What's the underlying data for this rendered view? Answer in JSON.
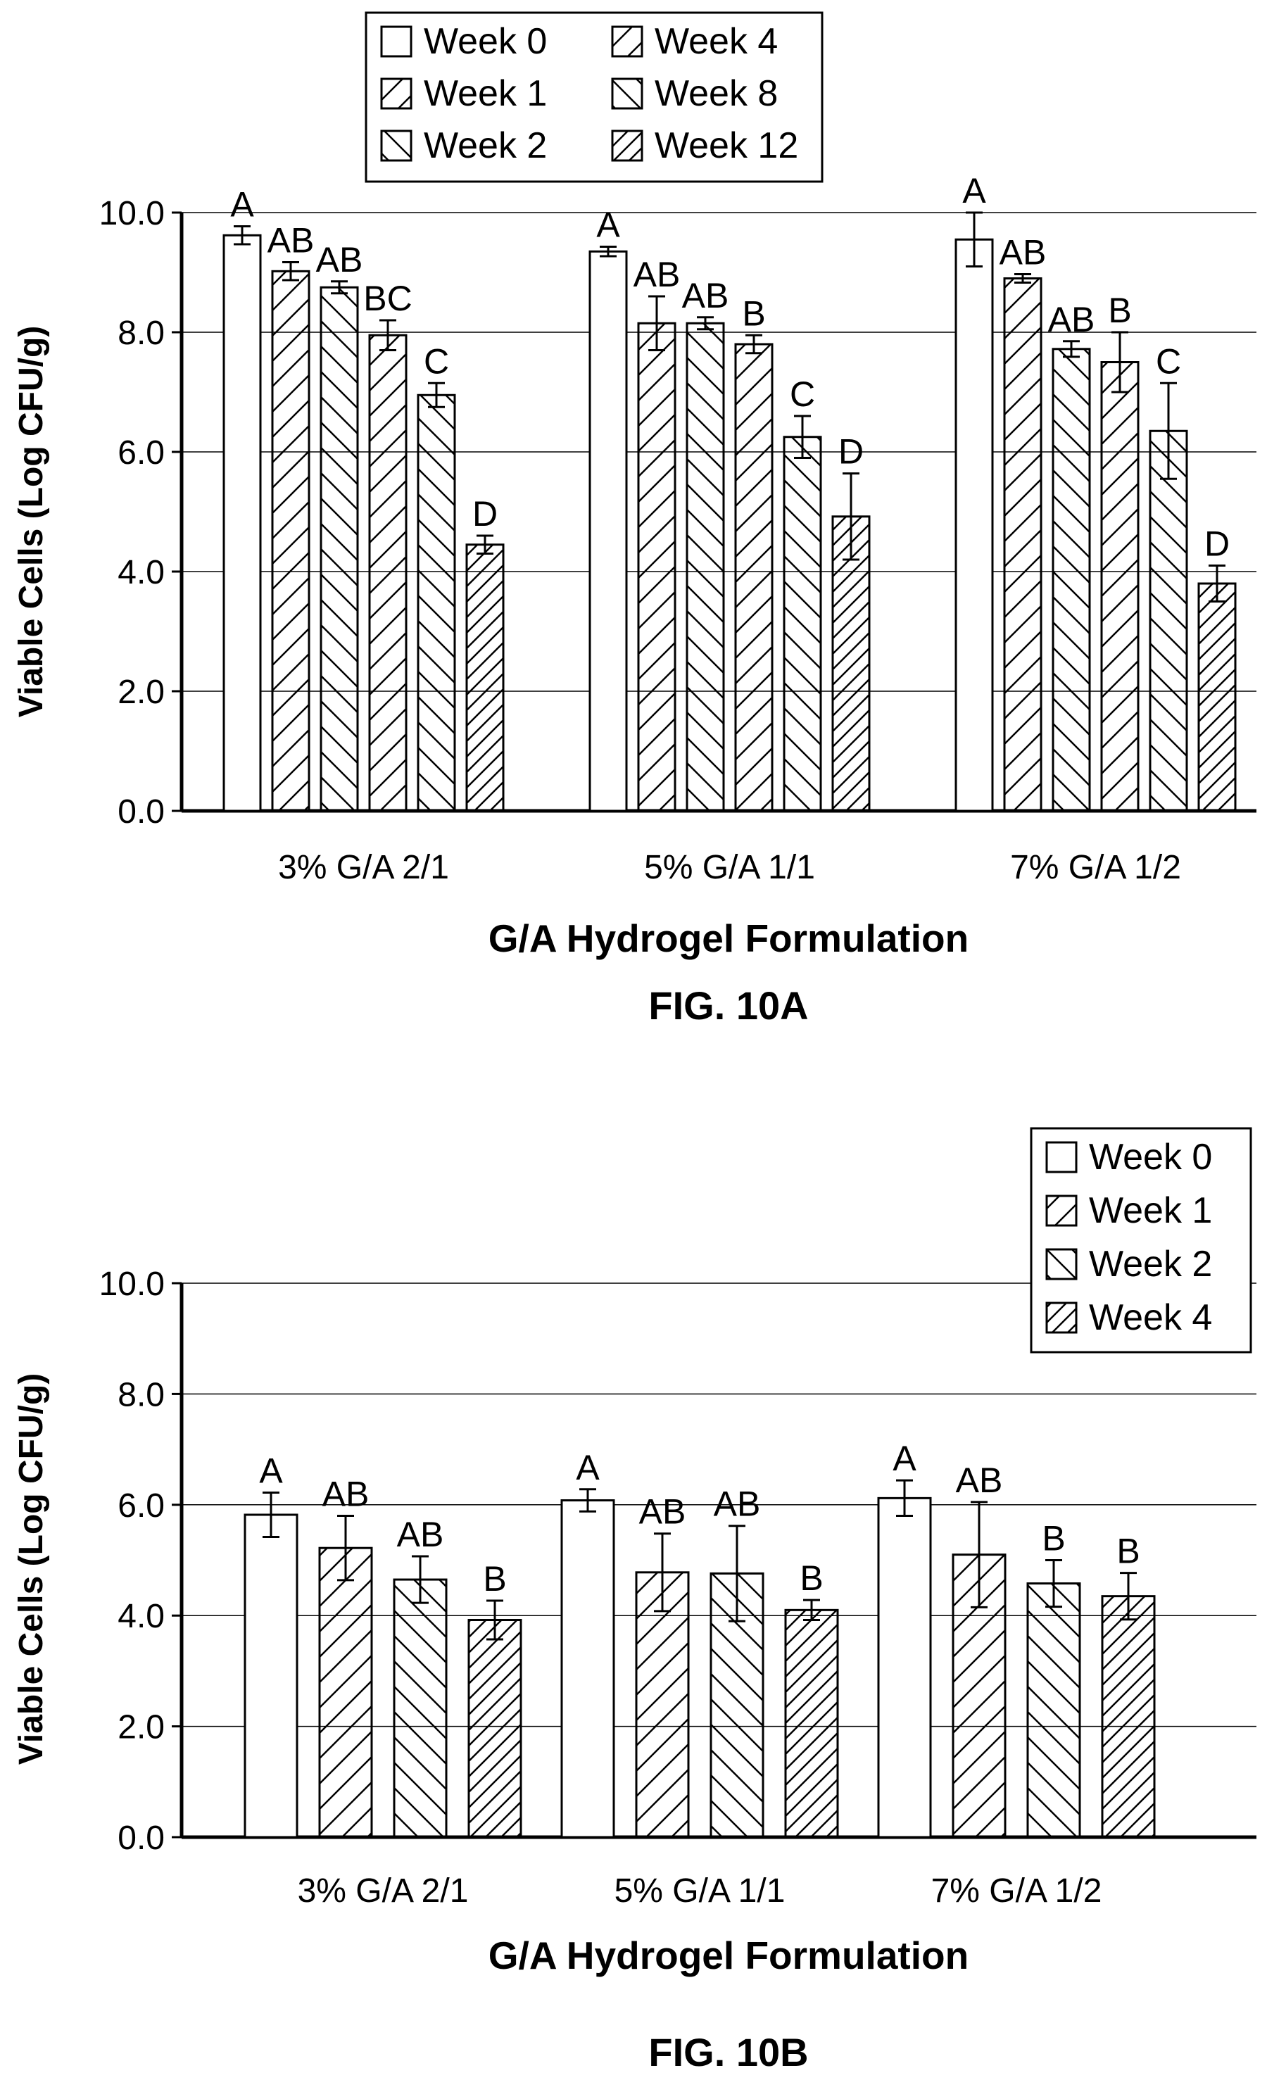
{
  "chart_data": [
    {
      "type": "bar",
      "caption": "FIG. 10A",
      "xlabel": "G/A Hydrogel Formulation",
      "ylabel": "Viable Cells (Log CFU/g)",
      "ylim": [
        0,
        10
      ],
      "yticks": [
        "0.0",
        "2.0",
        "4.0",
        "6.0",
        "8.0",
        "10.0"
      ],
      "grid": true,
      "legend_position": "top-center",
      "categories": [
        "3% G/A 2/1",
        "5% G/A 1/1",
        "7% G/A 1/2"
      ],
      "series": [
        {
          "name": "Week 0",
          "pattern": "none",
          "values": [
            9.62,
            9.35,
            9.55
          ],
          "errors": [
            0.15,
            0.08,
            0.45
          ],
          "labels": [
            "A",
            "A",
            "A"
          ]
        },
        {
          "name": "Week 1",
          "pattern": "fwd",
          "values": [
            9.02,
            8.15,
            8.9
          ],
          "errors": [
            0.15,
            0.45,
            0.07
          ],
          "labels": [
            "AB",
            "AB",
            "AB"
          ]
        },
        {
          "name": "Week 2",
          "pattern": "back",
          "values": [
            8.75,
            8.15,
            7.72
          ],
          "errors": [
            0.1,
            0.1,
            0.13
          ],
          "labels": [
            "AB",
            "AB",
            "AB"
          ]
        },
        {
          "name": "Week 4",
          "pattern": "fwd",
          "values": [
            7.95,
            7.8,
            7.5
          ],
          "errors": [
            0.25,
            0.15,
            0.5
          ],
          "labels": [
            "BC",
            "B",
            "B"
          ]
        },
        {
          "name": "Week 8",
          "pattern": "back",
          "values": [
            6.95,
            6.25,
            6.35
          ],
          "errors": [
            0.2,
            0.35,
            0.8
          ],
          "labels": [
            "C",
            "C",
            "C"
          ]
        },
        {
          "name": "Week 12",
          "pattern": "dense",
          "values": [
            4.45,
            4.92,
            3.8
          ],
          "errors": [
            0.15,
            0.72,
            0.3
          ],
          "labels": [
            "D",
            "D",
            "D"
          ]
        }
      ]
    },
    {
      "type": "bar",
      "caption": "FIG. 10B",
      "xlabel": "G/A Hydrogel Formulation",
      "ylabel": "Viable Cells (Log CFU/g)",
      "ylim": [
        0,
        10
      ],
      "yticks": [
        "0.0",
        "2.0",
        "4.0",
        "6.0",
        "8.0",
        "10.0"
      ],
      "grid": true,
      "legend_position": "top-right",
      "categories": [
        "3% G/A 2/1",
        "5% G/A 1/1",
        "7% G/A 1/2"
      ],
      "series": [
        {
          "name": "Week 0",
          "pattern": "none",
          "values": [
            5.82,
            6.08,
            6.12
          ],
          "errors": [
            0.4,
            0.2,
            0.32
          ],
          "labels": [
            "A",
            "A",
            "A"
          ]
        },
        {
          "name": "Week 1",
          "pattern": "fwd",
          "values": [
            5.22,
            4.78,
            5.1
          ],
          "errors": [
            0.58,
            0.7,
            0.95
          ],
          "labels": [
            "AB",
            "AB",
            "AB"
          ]
        },
        {
          "name": "Week 2",
          "pattern": "back",
          "values": [
            4.65,
            4.76,
            4.58
          ],
          "errors": [
            0.42,
            0.86,
            0.42
          ],
          "labels": [
            "AB",
            "AB",
            "B"
          ]
        },
        {
          "name": "Week 4",
          "pattern": "dense",
          "values": [
            3.92,
            4.1,
            4.35
          ],
          "errors": [
            0.35,
            0.18,
            0.42
          ],
          "labels": [
            "B",
            "B",
            "B"
          ]
        }
      ]
    }
  ]
}
